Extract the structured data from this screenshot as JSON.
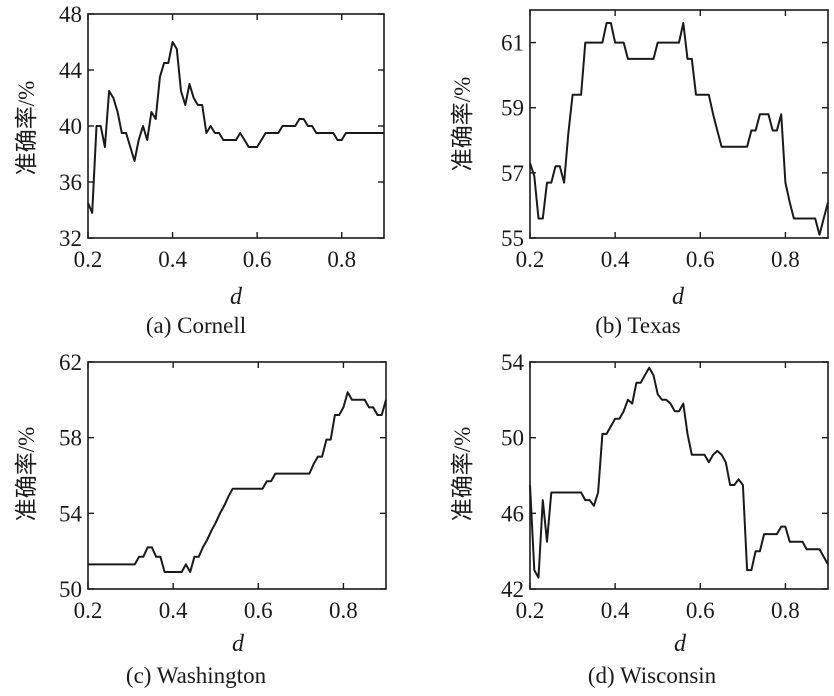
{
  "chart_data": [
    {
      "id": "a",
      "type": "line",
      "caption": "(a) Cornell",
      "xlabel": "d",
      "ylabel": "准确率/%",
      "xlim": [
        0.2,
        0.9
      ],
      "ylim": [
        32,
        48
      ],
      "xticks": [
        "0.2",
        "0.4",
        "0.6",
        "0.8"
      ],
      "xtick_values": [
        0.2,
        0.4,
        0.6,
        0.8
      ],
      "yticks": [
        "32",
        "36",
        "40",
        "44",
        "48"
      ],
      "ytick_values": [
        32,
        36,
        40,
        44,
        48
      ],
      "grid": false,
      "x": [
        0.2,
        0.21,
        0.22,
        0.23,
        0.24,
        0.25,
        0.26,
        0.27,
        0.28,
        0.29,
        0.3,
        0.31,
        0.32,
        0.33,
        0.34,
        0.35,
        0.36,
        0.37,
        0.38,
        0.39,
        0.4,
        0.41,
        0.42,
        0.43,
        0.44,
        0.45,
        0.46,
        0.47,
        0.48,
        0.49,
        0.5,
        0.51,
        0.52,
        0.53,
        0.54,
        0.55,
        0.56,
        0.57,
        0.58,
        0.59,
        0.6,
        0.61,
        0.62,
        0.63,
        0.64,
        0.65,
        0.66,
        0.67,
        0.68,
        0.69,
        0.7,
        0.71,
        0.72,
        0.73,
        0.74,
        0.75,
        0.76,
        0.77,
        0.78,
        0.79,
        0.8,
        0.81,
        0.82,
        0.83,
        0.84,
        0.85,
        0.86,
        0.87,
        0.88,
        0.89,
        0.9
      ],
      "y": [
        34.5,
        33.8,
        40,
        40,
        38.5,
        42.5,
        42,
        41,
        39.5,
        39.5,
        38.5,
        37.5,
        39,
        40,
        39,
        41,
        40.5,
        43.5,
        44.5,
        44.5,
        46,
        45.5,
        42.5,
        41.5,
        43,
        42,
        41.5,
        41.5,
        39.5,
        40,
        39.5,
        39.5,
        39,
        39,
        39,
        39,
        39.5,
        39,
        38.5,
        38.5,
        38.5,
        39,
        39.5,
        39.5,
        39.5,
        39.5,
        40,
        40,
        40,
        40,
        40.5,
        40.5,
        40,
        40,
        39.5,
        39.5,
        39.5,
        39.5,
        39.5,
        39,
        39,
        39.5,
        39.5,
        39.5,
        39.5,
        39.5,
        39.5,
        39.5,
        39.5,
        39.5,
        39.5
      ]
    },
    {
      "id": "b",
      "type": "line",
      "caption": "(b) Texas",
      "xlabel": "d",
      "ylabel": "准确率/%",
      "xlim": [
        0.2,
        0.9
      ],
      "ylim": [
        55,
        62
      ],
      "xticks": [
        "0.2",
        "0.4",
        "0.6",
        "0.8"
      ],
      "xtick_values": [
        0.2,
        0.4,
        0.6,
        0.8
      ],
      "yticks": [
        "55",
        "57",
        "59",
        "61"
      ],
      "ytick_values": [
        55,
        57,
        59,
        61
      ],
      "grid": false,
      "x": [
        0.2,
        0.21,
        0.22,
        0.23,
        0.24,
        0.25,
        0.26,
        0.27,
        0.28,
        0.29,
        0.3,
        0.31,
        0.32,
        0.33,
        0.34,
        0.35,
        0.36,
        0.37,
        0.38,
        0.39,
        0.4,
        0.41,
        0.42,
        0.43,
        0.44,
        0.45,
        0.46,
        0.47,
        0.48,
        0.49,
        0.5,
        0.51,
        0.52,
        0.53,
        0.54,
        0.55,
        0.56,
        0.57,
        0.58,
        0.59,
        0.6,
        0.61,
        0.62,
        0.63,
        0.64,
        0.65,
        0.66,
        0.67,
        0.68,
        0.69,
        0.7,
        0.71,
        0.72,
        0.73,
        0.74,
        0.75,
        0.76,
        0.77,
        0.78,
        0.79,
        0.8,
        0.81,
        0.82,
        0.83,
        0.84,
        0.85,
        0.86,
        0.87,
        0.88,
        0.89,
        0.9
      ],
      "y": [
        57.3,
        56.9,
        55.6,
        55.6,
        56.7,
        56.7,
        57.2,
        57.2,
        56.7,
        58.2,
        59.4,
        59.4,
        59.4,
        61,
        61,
        61,
        61,
        61,
        61.6,
        61.6,
        61,
        61,
        61,
        60.5,
        60.5,
        60.5,
        60.5,
        60.5,
        60.5,
        60.5,
        61,
        61,
        61,
        61,
        61,
        61,
        61.6,
        60.5,
        60.5,
        59.4,
        59.4,
        59.4,
        59.4,
        58.8,
        58.3,
        57.8,
        57.8,
        57.8,
        57.8,
        57.8,
        57.8,
        57.8,
        58.3,
        58.3,
        58.8,
        58.8,
        58.8,
        58.3,
        58.3,
        58.8,
        56.7,
        56.1,
        55.6,
        55.6,
        55.6,
        55.6,
        55.6,
        55.6,
        55.1,
        55.6,
        56.1
      ]
    },
    {
      "id": "c",
      "type": "line",
      "caption": "(c) Washington",
      "xlabel": "d",
      "ylabel": "准确率/%",
      "xlim": [
        0.2,
        0.9
      ],
      "ylim": [
        50,
        62
      ],
      "xticks": [
        "0.2",
        "0.4",
        "0.6",
        "0.8"
      ],
      "xtick_values": [
        0.2,
        0.4,
        0.6,
        0.8
      ],
      "yticks": [
        "50",
        "54",
        "58",
        "62"
      ],
      "ytick_values": [
        50,
        54,
        58,
        62
      ],
      "grid": false,
      "x": [
        0.2,
        0.21,
        0.22,
        0.23,
        0.24,
        0.25,
        0.26,
        0.27,
        0.28,
        0.29,
        0.3,
        0.31,
        0.32,
        0.33,
        0.34,
        0.35,
        0.36,
        0.37,
        0.38,
        0.39,
        0.4,
        0.41,
        0.42,
        0.43,
        0.44,
        0.45,
        0.46,
        0.47,
        0.48,
        0.49,
        0.5,
        0.51,
        0.52,
        0.53,
        0.54,
        0.55,
        0.56,
        0.57,
        0.58,
        0.59,
        0.6,
        0.61,
        0.62,
        0.63,
        0.64,
        0.65,
        0.66,
        0.67,
        0.68,
        0.69,
        0.7,
        0.71,
        0.72,
        0.73,
        0.74,
        0.75,
        0.76,
        0.77,
        0.78,
        0.79,
        0.8,
        0.81,
        0.82,
        0.83,
        0.84,
        0.85,
        0.86,
        0.87,
        0.88,
        0.89,
        0.9
      ],
      "y": [
        51.3,
        51.3,
        51.3,
        51.3,
        51.3,
        51.3,
        51.3,
        51.3,
        51.3,
        51.3,
        51.3,
        51.3,
        51.7,
        51.7,
        52.2,
        52.2,
        51.7,
        51.7,
        50.9,
        50.9,
        50.9,
        50.9,
        50.9,
        51.3,
        50.9,
        51.7,
        51.7,
        52.2,
        52.6,
        53.1,
        53.5,
        54,
        54.4,
        54.9,
        55.3,
        55.3,
        55.3,
        55.3,
        55.3,
        55.3,
        55.3,
        55.3,
        55.7,
        55.7,
        56.1,
        56.1,
        56.1,
        56.1,
        56.1,
        56.1,
        56.1,
        56.1,
        56.1,
        56.6,
        57,
        57,
        57.9,
        57.9,
        59.2,
        59.2,
        59.6,
        60.4,
        60,
        60,
        60,
        60,
        59.6,
        59.6,
        59.2,
        59.2,
        60
      ]
    },
    {
      "id": "d",
      "type": "line",
      "caption": "(d) Wisconsin",
      "xlabel": "d",
      "ylabel": "准确率/%",
      "xlim": [
        0.2,
        0.9
      ],
      "ylim": [
        42,
        54
      ],
      "xticks": [
        "0.2",
        "0.4",
        "0.6",
        "0.8"
      ],
      "xtick_values": [
        0.2,
        0.4,
        0.6,
        0.8
      ],
      "yticks": [
        "42",
        "46",
        "50",
        "54"
      ],
      "ytick_values": [
        42,
        46,
        50,
        54
      ],
      "grid": false,
      "x": [
        0.2,
        0.21,
        0.22,
        0.23,
        0.24,
        0.25,
        0.26,
        0.27,
        0.28,
        0.29,
        0.3,
        0.31,
        0.32,
        0.33,
        0.34,
        0.35,
        0.36,
        0.37,
        0.38,
        0.39,
        0.4,
        0.41,
        0.42,
        0.43,
        0.44,
        0.45,
        0.46,
        0.47,
        0.48,
        0.49,
        0.5,
        0.51,
        0.52,
        0.53,
        0.54,
        0.55,
        0.56,
        0.57,
        0.58,
        0.59,
        0.6,
        0.61,
        0.62,
        0.63,
        0.64,
        0.65,
        0.66,
        0.67,
        0.68,
        0.69,
        0.7,
        0.71,
        0.72,
        0.73,
        0.74,
        0.75,
        0.76,
        0.77,
        0.78,
        0.79,
        0.8,
        0.81,
        0.82,
        0.83,
        0.84,
        0.85,
        0.86,
        0.87,
        0.88,
        0.89,
        0.9
      ],
      "y": [
        47.5,
        43,
        42.6,
        46.7,
        44.5,
        47.1,
        47.1,
        47.1,
        47.1,
        47.1,
        47.1,
        47.1,
        47.1,
        46.7,
        46.7,
        46.4,
        47.1,
        50.2,
        50.2,
        50.6,
        51,
        51,
        51.4,
        52,
        51.8,
        52.9,
        52.9,
        53.3,
        53.7,
        53.3,
        52.3,
        52,
        52,
        51.8,
        51.4,
        51.4,
        51.8,
        50.2,
        49.1,
        49.1,
        49.1,
        49.1,
        48.7,
        49.1,
        49.3,
        49.1,
        48.7,
        47.5,
        47.5,
        47.8,
        47.5,
        43,
        43,
        44,
        44,
        44.9,
        44.9,
        44.9,
        44.9,
        45.3,
        45.3,
        44.5,
        44.5,
        44.5,
        44.5,
        44.1,
        44.1,
        44.1,
        44.1,
        43.7,
        43.3
      ]
    }
  ]
}
